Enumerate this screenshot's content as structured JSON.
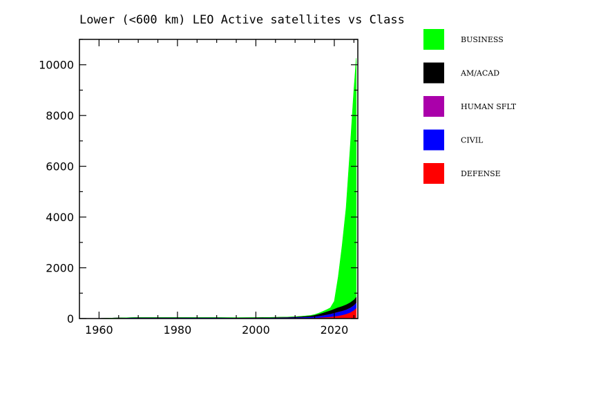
{
  "chart_data": {
    "type": "area",
    "title": "Lower (<600 km) LEO Active satellites vs Class",
    "xlabel": "",
    "ylabel": "",
    "xlim": [
      1955,
      2026
    ],
    "ylim": [
      0,
      11000
    ],
    "xticks": [
      1960,
      1980,
      2000,
      2020
    ],
    "yticks": [
      0,
      2000,
      4000,
      6000,
      8000,
      10000
    ],
    "grid": false,
    "legend_position": "right",
    "x": [
      1957,
      1960,
      1965,
      1970,
      1975,
      1980,
      1985,
      1990,
      1995,
      2000,
      2005,
      2008,
      2010,
      2012,
      2014,
      2015,
      2016,
      2017,
      2018,
      2019,
      2020,
      2021,
      2022,
      2023,
      2024,
      2025,
      2025.6
    ],
    "series": [
      {
        "name": "DEFENSE",
        "color": "#ff0000",
        "values": [
          0,
          5,
          15,
          25,
          25,
          25,
          20,
          20,
          15,
          15,
          15,
          15,
          15,
          20,
          25,
          30,
          40,
          50,
          60,
          70,
          90,
          110,
          140,
          180,
          240,
          330,
          420
        ]
      },
      {
        "name": "CIVIL",
        "color": "#0000ff",
        "values": [
          0,
          2,
          10,
          15,
          15,
          15,
          15,
          15,
          15,
          15,
          20,
          25,
          30,
          35,
          40,
          45,
          55,
          70,
          90,
          110,
          130,
          150,
          160,
          170,
          180,
          190,
          200
        ]
      },
      {
        "name": "HUMAN SFLT",
        "color": "#aa00aa",
        "values": [
          0,
          0,
          2,
          3,
          3,
          3,
          3,
          3,
          3,
          5,
          5,
          5,
          5,
          5,
          5,
          5,
          5,
          5,
          5,
          5,
          5,
          5,
          5,
          5,
          5,
          10,
          10
        ]
      },
      {
        "name": "AM/ACAD",
        "color": "#000000",
        "values": [
          0,
          0,
          0,
          0,
          0,
          0,
          0,
          2,
          3,
          5,
          10,
          15,
          20,
          30,
          45,
          60,
          80,
          100,
          120,
          140,
          160,
          180,
          190,
          200,
          210,
          220,
          230
        ]
      },
      {
        "name": "BUSINESS",
        "color": "#00ff00",
        "values": [
          0,
          0,
          0,
          0,
          0,
          0,
          0,
          0,
          0,
          0,
          0,
          0,
          0,
          5,
          10,
          20,
          30,
          50,
          70,
          100,
          300,
          1200,
          2400,
          3800,
          6000,
          8300,
          9400
        ]
      }
    ]
  }
}
